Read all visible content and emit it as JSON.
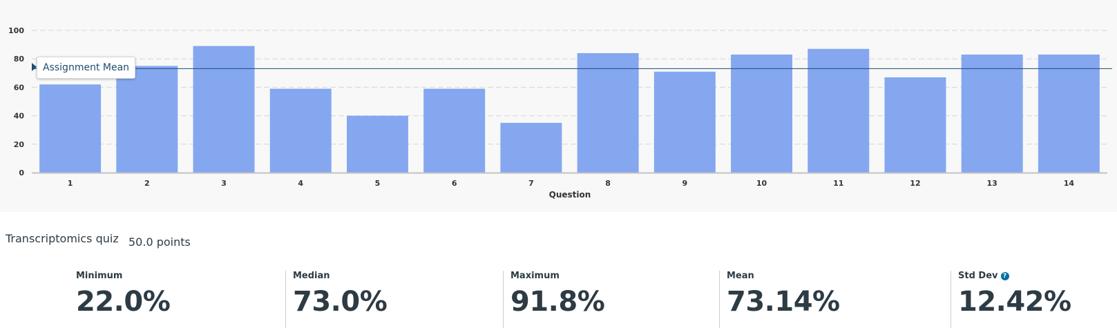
{
  "chart_data": {
    "type": "bar",
    "categories": [
      "1",
      "2",
      "3",
      "4",
      "5",
      "6",
      "7",
      "8",
      "9",
      "10",
      "11",
      "12",
      "13",
      "14"
    ],
    "values": [
      62,
      75,
      89,
      59,
      40,
      59,
      35,
      84,
      71,
      83,
      87,
      67,
      83,
      83
    ],
    "xlabel": "Question",
    "ylabel": "",
    "ylim": [
      0,
      100
    ],
    "yticks": [
      0,
      20,
      40,
      60,
      80,
      100
    ],
    "grid": true,
    "bar_color": "#84a7f0",
    "annotation": {
      "label": "Assignment Mean",
      "value": 73.14,
      "color": "#1d4e6e"
    }
  },
  "quiz": {
    "title": "Transcriptomics quiz",
    "points": "50.0 points"
  },
  "stats": [
    {
      "label": "Minimum",
      "value": "22.0%"
    },
    {
      "label": "Median",
      "value": "73.0%"
    },
    {
      "label": "Maximum",
      "value": "91.8%"
    },
    {
      "label": "Mean",
      "value": "73.14%"
    },
    {
      "label": "Std Dev",
      "value": "12.42%"
    }
  ],
  "icons": {
    "std_dev_help": "help-icon"
  }
}
